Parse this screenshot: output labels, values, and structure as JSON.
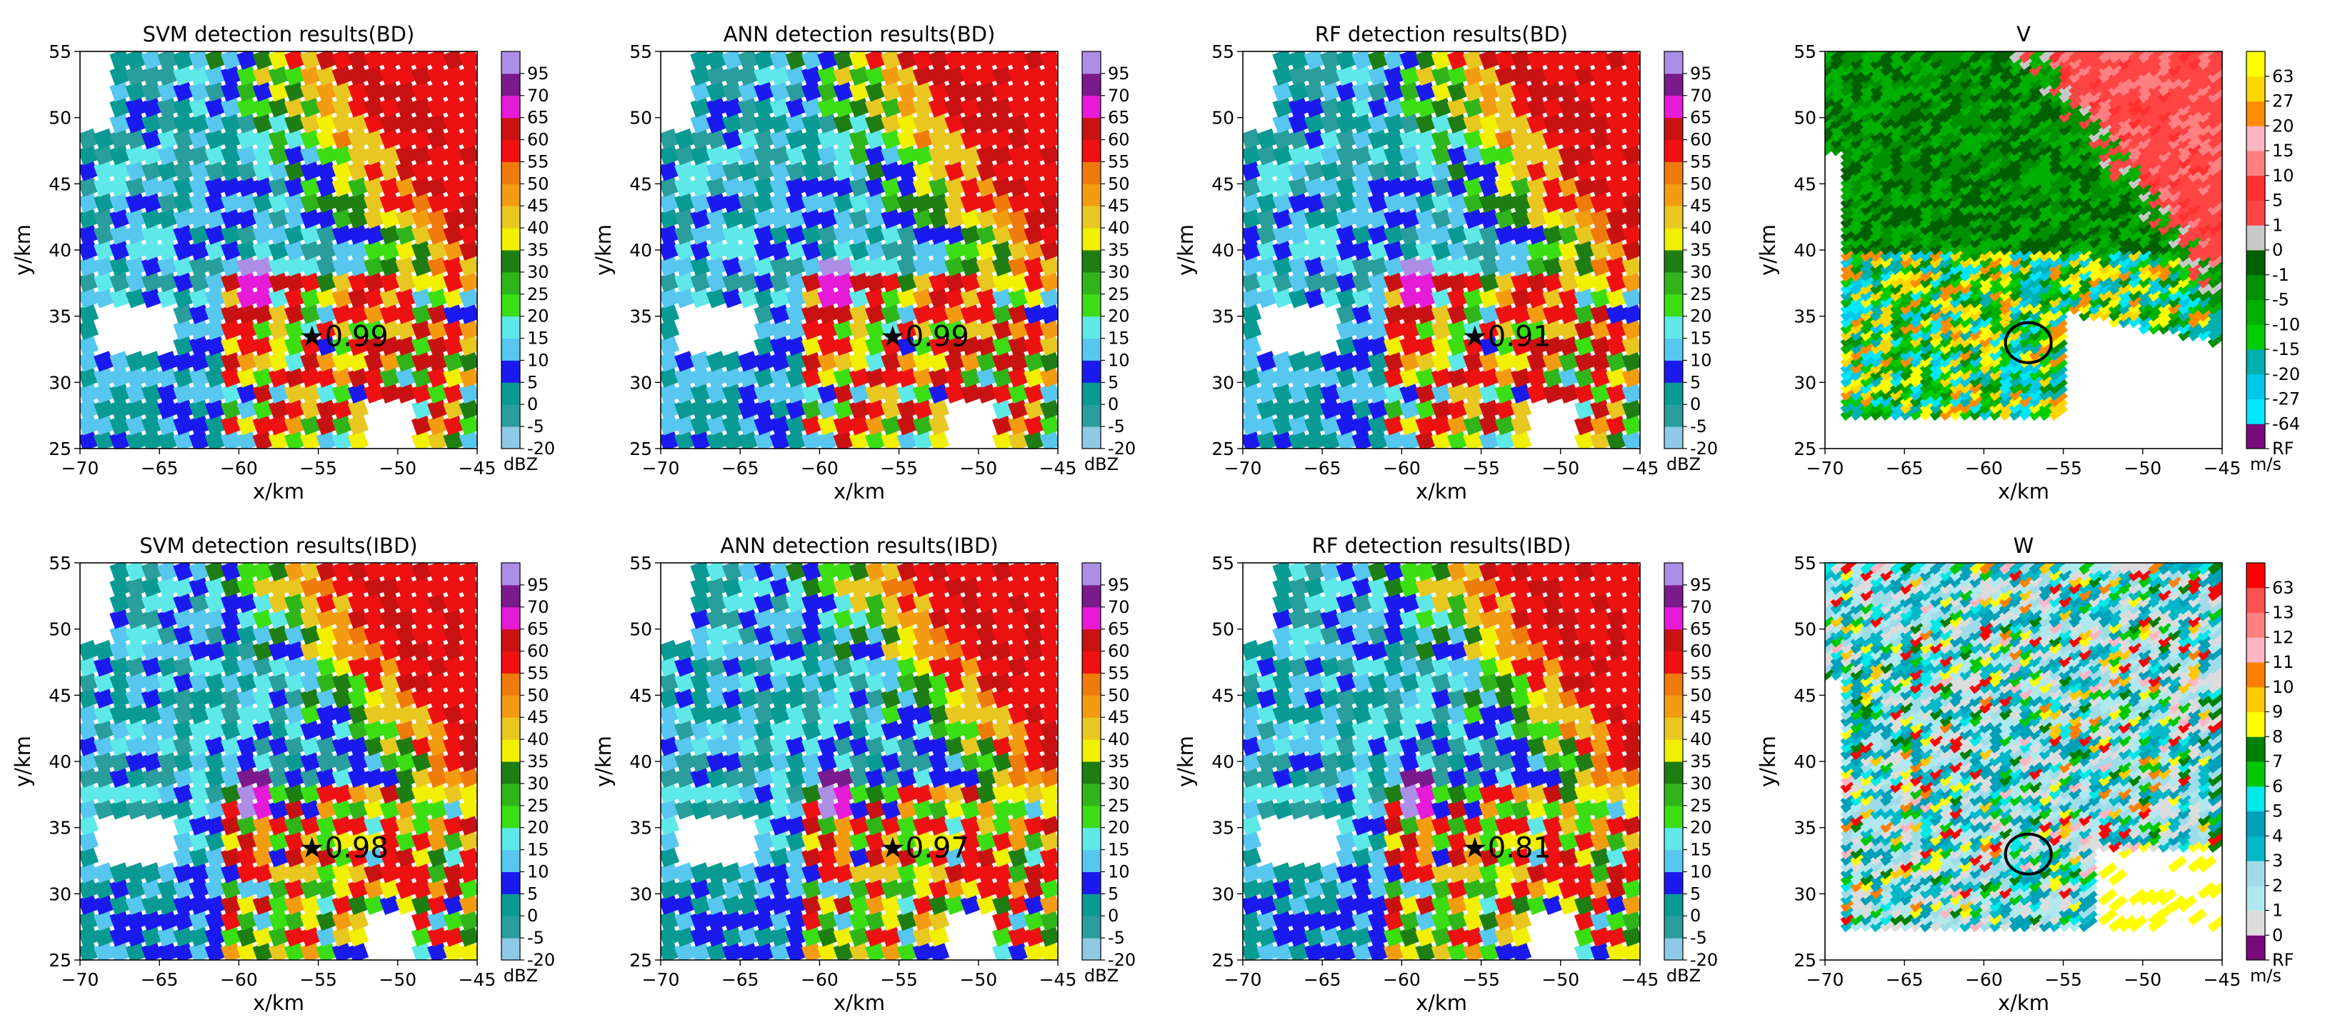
{
  "figure": {
    "dbz_levels": [
      "-20",
      "-5",
      "0",
      "5",
      "10",
      "15",
      "20",
      "25",
      "30",
      "35",
      "40",
      "45",
      "50",
      "55",
      "60",
      "65",
      "70",
      "95"
    ],
    "dbz_colors": [
      "#8ecae6",
      "#2a9d9d",
      "#0a9a94",
      "#1a1aee",
      "#57c7f0",
      "#5fe8e8",
      "#3bde13",
      "#2fb51a",
      "#1e7e14",
      "#f0f000",
      "#e8c820",
      "#f39c12",
      "#ee7b0c",
      "#ee1111",
      "#c81212",
      "#e51bd8",
      "#7b1a8c",
      "#ad8ee6"
    ],
    "v_levels": [
      "RF",
      "-64",
      "-27",
      "-20",
      "-15",
      "-10",
      "-5",
      "-1",
      "0",
      "1",
      "5",
      "10",
      "15",
      "20",
      "27",
      "63"
    ],
    "v_colors": [
      "#7a0a7a",
      "#00e8ff",
      "#00c8e8",
      "#00b0b0",
      "#00cc00",
      "#00b000",
      "#009000",
      "#006000",
      "#c8c8c8",
      "#ff4444",
      "#ff3030",
      "#ff8080",
      "#ffb6c1",
      "#ff8c00",
      "#ffd700",
      "#ffff00"
    ],
    "w_levels": [
      "RF",
      "0",
      "1",
      "2",
      "3",
      "4",
      "5",
      "6",
      "7",
      "8",
      "9",
      "10",
      "11",
      "12",
      "13",
      "63"
    ],
    "w_colors": [
      "#7a0a7a",
      "#dcdcdc",
      "#b0e8f0",
      "#a0dce8",
      "#00b8c8",
      "#00a0b8",
      "#00e8e8",
      "#00c800",
      "#008000",
      "#ffff00",
      "#ffc800",
      "#ff8000",
      "#ffb6c1",
      "#ff8080",
      "#ff5050",
      "#ff0000"
    ]
  },
  "chart_data": [
    {
      "type": "heatmap",
      "title": "SVM detection results(BD)",
      "xlabel": "x/km",
      "ylabel": "y/km",
      "xlim": [
        -70,
        -45
      ],
      "ylim": [
        25,
        55
      ],
      "xticks": [
        "−70",
        "−65",
        "−60",
        "−55",
        "−50",
        "−45"
      ],
      "yticks": [
        "25",
        "30",
        "35",
        "40",
        "45",
        "50",
        "55"
      ],
      "colorbar_unit": "dBZ",
      "annotation": "★0.99",
      "annotation_xy": [
        -56.2,
        33.5
      ],
      "scale": "dbz",
      "variant": "a"
    },
    {
      "type": "heatmap",
      "title": "ANN detection results(BD)",
      "xlabel": "x/km",
      "ylabel": "y/km",
      "xlim": [
        -70,
        -45
      ],
      "ylim": [
        25,
        55
      ],
      "xticks": [
        "−70",
        "−65",
        "−60",
        "−55",
        "−50",
        "−45"
      ],
      "yticks": [
        "25",
        "30",
        "35",
        "40",
        "45",
        "50",
        "55"
      ],
      "colorbar_unit": "dBZ",
      "annotation": "★0.99",
      "annotation_xy": [
        -56.2,
        33.5
      ],
      "scale": "dbz",
      "variant": "a"
    },
    {
      "type": "heatmap",
      "title": "RF detection results(BD)",
      "xlabel": "x/km",
      "ylabel": "y/km",
      "xlim": [
        -70,
        -45
      ],
      "ylim": [
        25,
        55
      ],
      "xticks": [
        "−70",
        "−65",
        "−60",
        "−55",
        "−50",
        "−45"
      ],
      "yticks": [
        "25",
        "30",
        "35",
        "40",
        "45",
        "50",
        "55"
      ],
      "colorbar_unit": "dBZ",
      "annotation": "★0.91",
      "annotation_xy": [
        -56.2,
        33.5
      ],
      "scale": "dbz",
      "variant": "a"
    },
    {
      "type": "heatmap",
      "title": "V",
      "xlabel": "x/km",
      "ylabel": "y/km",
      "xlim": [
        -70,
        -45
      ],
      "ylim": [
        25,
        55
      ],
      "xticks": [
        "−70",
        "−65",
        "−60",
        "−55",
        "−50",
        "−45"
      ],
      "yticks": [
        "25",
        "30",
        "35",
        "40",
        "45",
        "50",
        "55"
      ],
      "colorbar_unit": "m/s",
      "circle_xy": [
        -57.2,
        33
      ],
      "scale": "v"
    },
    {
      "type": "heatmap",
      "title": "SVM detection results(IBD)",
      "xlabel": "x/km",
      "ylabel": "y/km",
      "xlim": [
        -70,
        -45
      ],
      "ylim": [
        25,
        55
      ],
      "xticks": [
        "−70",
        "−65",
        "−60",
        "−55",
        "−50",
        "−45"
      ],
      "yticks": [
        "25",
        "30",
        "35",
        "40",
        "45",
        "50",
        "55"
      ],
      "colorbar_unit": "dBZ",
      "annotation": "★0.98",
      "annotation_xy": [
        -56.2,
        33.5
      ],
      "scale": "dbz",
      "variant": "b"
    },
    {
      "type": "heatmap",
      "title": "ANN detection results(IBD)",
      "xlabel": "x/km",
      "ylabel": "y/km",
      "xlim": [
        -70,
        -45
      ],
      "ylim": [
        25,
        55
      ],
      "xticks": [
        "−70",
        "−65",
        "−60",
        "−55",
        "−50",
        "−45"
      ],
      "yticks": [
        "25",
        "30",
        "35",
        "40",
        "45",
        "50",
        "55"
      ],
      "colorbar_unit": "dBZ",
      "annotation": "★0.97",
      "annotation_xy": [
        -56.2,
        33.5
      ],
      "scale": "dbz",
      "variant": "b"
    },
    {
      "type": "heatmap",
      "title": "RF detection results(IBD)",
      "xlabel": "x/km",
      "ylabel": "y/km",
      "xlim": [
        -70,
        -45
      ],
      "ylim": [
        25,
        55
      ],
      "xticks": [
        "−70",
        "−65",
        "−60",
        "−55",
        "−50",
        "−45"
      ],
      "yticks": [
        "25",
        "30",
        "35",
        "40",
        "45",
        "50",
        "55"
      ],
      "colorbar_unit": "dBZ",
      "annotation": "★0.81",
      "annotation_xy": [
        -56.2,
        33.5
      ],
      "scale": "dbz",
      "variant": "b"
    },
    {
      "type": "heatmap",
      "title": "W",
      "xlabel": "x/km",
      "ylabel": "y/km",
      "xlim": [
        -70,
        -45
      ],
      "ylim": [
        25,
        55
      ],
      "xticks": [
        "−70",
        "−65",
        "−60",
        "−55",
        "−50",
        "−45"
      ],
      "yticks": [
        "25",
        "30",
        "35",
        "40",
        "45",
        "50",
        "55"
      ],
      "colorbar_unit": "m/s",
      "circle_xy": [
        -57.2,
        33
      ],
      "scale": "w"
    }
  ]
}
